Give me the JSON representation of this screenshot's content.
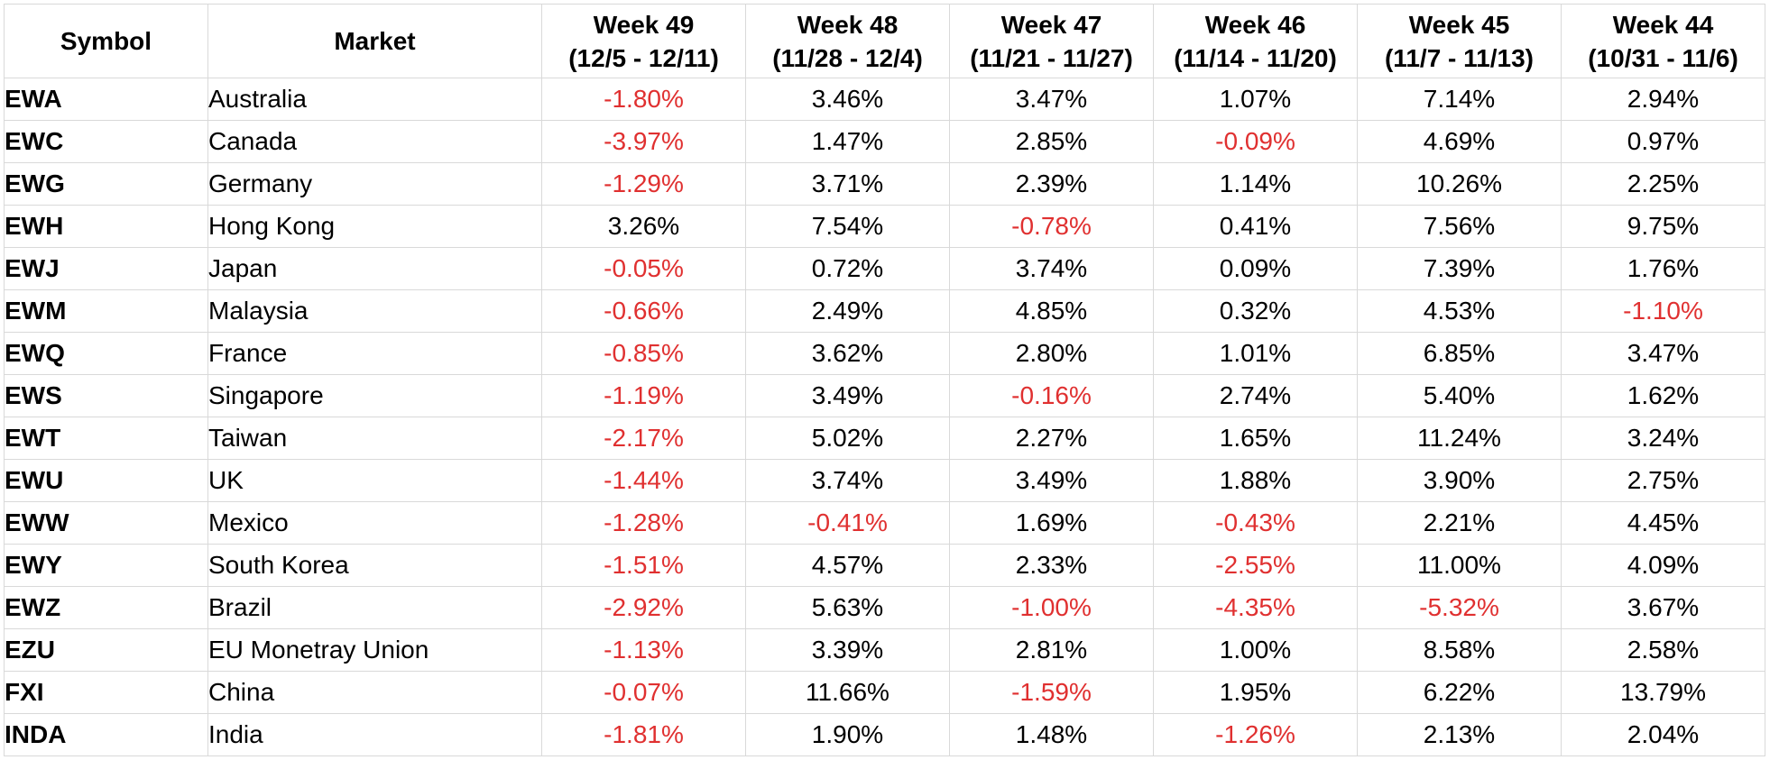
{
  "columns": {
    "symbol": "Symbol",
    "market": "Market",
    "weeks": [
      {
        "week": "Week 49",
        "range": "(12/5 - 12/11)"
      },
      {
        "week": "Week 48",
        "range": "(11/28 - 12/4)"
      },
      {
        "week": "Week 47",
        "range": "(11/21 - 11/27)"
      },
      {
        "week": "Week 46",
        "range": "(11/14 - 11/20)"
      },
      {
        "week": "Week 45",
        "range": "(11/7 - 11/13)"
      },
      {
        "week": "Week 44",
        "range": "(10/31 - 11/6)"
      }
    ]
  },
  "negative_color": "#e03030",
  "rows": [
    {
      "symbol": "EWA",
      "market": "Australia",
      "values": [
        "-1.80%",
        "3.46%",
        "3.47%",
        "1.07%",
        "7.14%",
        "2.94%"
      ]
    },
    {
      "symbol": "EWC",
      "market": "Canada",
      "values": [
        "-3.97%",
        "1.47%",
        "2.85%",
        "-0.09%",
        "4.69%",
        "0.97%"
      ]
    },
    {
      "symbol": "EWG",
      "market": "Germany",
      "values": [
        "-1.29%",
        "3.71%",
        "2.39%",
        "1.14%",
        "10.26%",
        "2.25%"
      ]
    },
    {
      "symbol": "EWH",
      "market": "Hong Kong",
      "values": [
        "3.26%",
        "7.54%",
        "-0.78%",
        "0.41%",
        "7.56%",
        "9.75%"
      ]
    },
    {
      "symbol": "EWJ",
      "market": "Japan",
      "values": [
        "-0.05%",
        "0.72%",
        "3.74%",
        "0.09%",
        "7.39%",
        "1.76%"
      ]
    },
    {
      "symbol": "EWM",
      "market": "Malaysia",
      "values": [
        "-0.66%",
        "2.49%",
        "4.85%",
        "0.32%",
        "4.53%",
        "-1.10%"
      ]
    },
    {
      "symbol": "EWQ",
      "market": "France",
      "values": [
        "-0.85%",
        "3.62%",
        "2.80%",
        "1.01%",
        "6.85%",
        "3.47%"
      ]
    },
    {
      "symbol": "EWS",
      "market": "Singapore",
      "values": [
        "-1.19%",
        "3.49%",
        "-0.16%",
        "2.74%",
        "5.40%",
        "1.62%"
      ]
    },
    {
      "symbol": "EWT",
      "market": "Taiwan",
      "values": [
        "-2.17%",
        "5.02%",
        "2.27%",
        "1.65%",
        "11.24%",
        "3.24%"
      ]
    },
    {
      "symbol": "EWU",
      "market": "UK",
      "values": [
        "-1.44%",
        "3.74%",
        "3.49%",
        "1.88%",
        "3.90%",
        "2.75%"
      ]
    },
    {
      "symbol": "EWW",
      "market": "Mexico",
      "values": [
        "-1.28%",
        "-0.41%",
        "1.69%",
        "-0.43%",
        "2.21%",
        "4.45%"
      ]
    },
    {
      "symbol": "EWY",
      "market": "South Korea",
      "values": [
        "-1.51%",
        "4.57%",
        "2.33%",
        "-2.55%",
        "11.00%",
        "4.09%"
      ]
    },
    {
      "symbol": "EWZ",
      "market": "Brazil",
      "values": [
        "-2.92%",
        "5.63%",
        "-1.00%",
        "-4.35%",
        "-5.32%",
        "3.67%"
      ]
    },
    {
      "symbol": "EZU",
      "market": "EU Monetray Union",
      "values": [
        "-1.13%",
        "3.39%",
        "2.81%",
        "1.00%",
        "8.58%",
        "2.58%"
      ]
    },
    {
      "symbol": "FXI",
      "market": "China",
      "values": [
        "-0.07%",
        "11.66%",
        "-1.59%",
        "1.95%",
        "6.22%",
        "13.79%"
      ]
    },
    {
      "symbol": "INDA",
      "market": "India",
      "values": [
        "-1.81%",
        "1.90%",
        "1.48%",
        "-1.26%",
        "2.13%",
        "2.04%"
      ]
    }
  ]
}
